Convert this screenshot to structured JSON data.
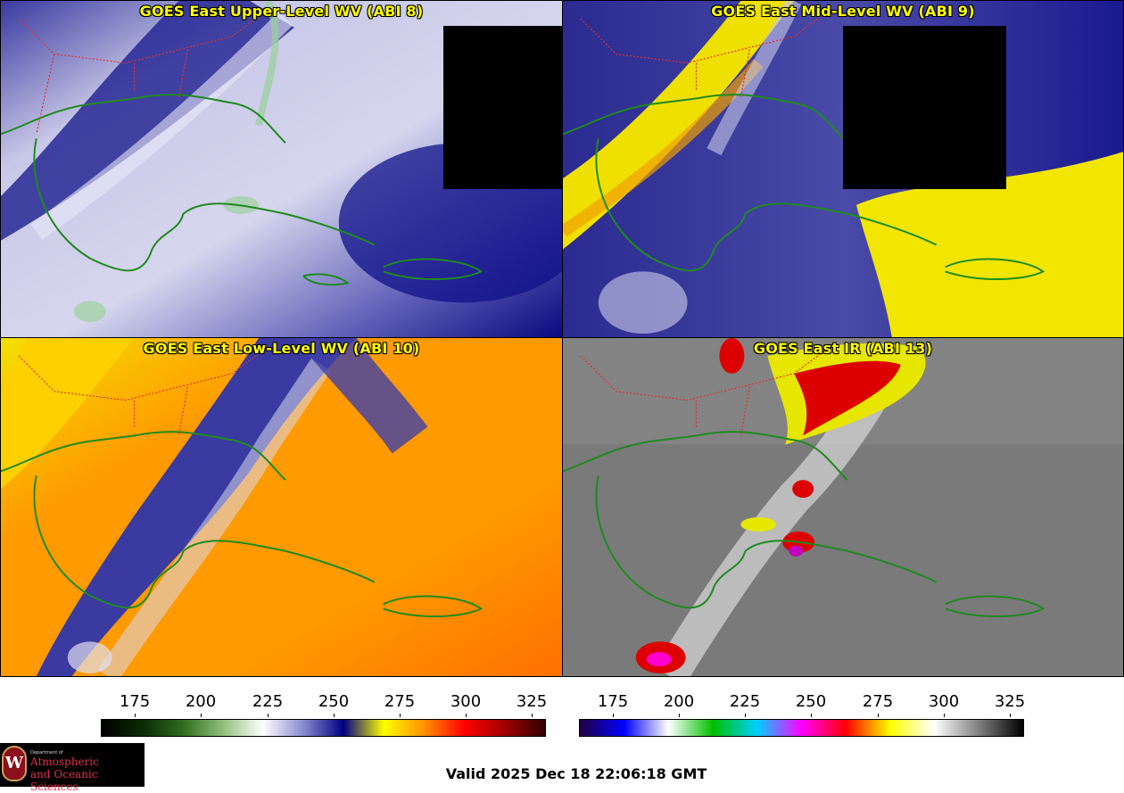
{
  "panels": {
    "upper": {
      "title": "GOES East Upper-Level WV (ABI 8)"
    },
    "mid": {
      "title": "GOES East Mid-Level WV (ABI 9)"
    },
    "low": {
      "title": "GOES East Low-Level WV (ABI 10)"
    },
    "ir": {
      "title": "GOES East IR (ABI 13)"
    }
  },
  "colorbars": {
    "wv": {
      "ticks": [
        "175",
        "200",
        "225",
        "250",
        "275",
        "300",
        "325"
      ],
      "colors": [
        "#000000",
        "#0a2a05",
        "#2f6b1c",
        "#8fbf7a",
        "#ffffff",
        "#8a8ad0",
        "#000080",
        "#ffff00",
        "#ff9000",
        "#ff0000",
        "#a00000",
        "#300000"
      ]
    },
    "ir": {
      "ticks": [
        "175",
        "200",
        "225",
        "250",
        "275",
        "300",
        "325"
      ],
      "colors": [
        "#200040",
        "#0000ff",
        "#ffffff",
        "#00c000",
        "#00d0ff",
        "#ff00ff",
        "#ff0000",
        "#ffff00",
        "#ffffff",
        "#808080",
        "#000000"
      ]
    }
  },
  "footer": {
    "valid_text": "Valid 2025 Dec 18 22:06:18 GMT",
    "logo": {
      "department": "Department of",
      "line1": "Atmospheric",
      "line2": "and Oceanic Sciences",
      "seal_letter": "W"
    }
  },
  "colors": {
    "title_text": "#ffff00",
    "coastline": "#1f8a1f",
    "state_borders": "#e03030",
    "background": "#ffffff"
  }
}
